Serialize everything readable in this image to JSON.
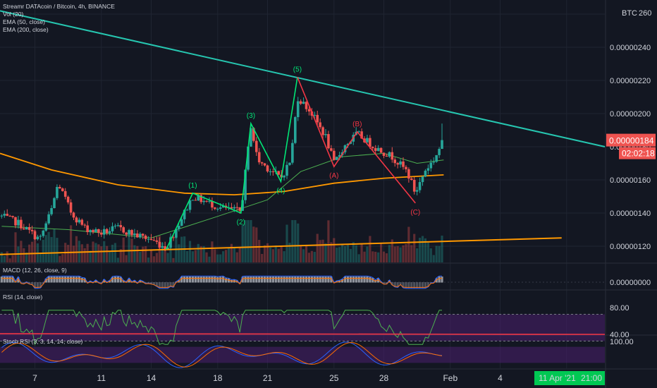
{
  "legend": {
    "title": "Streamr DATAcoin / Bitcoin, 4h, BINANCE",
    "vol": "Vol (20)",
    "ema50": "EMA (50, close)",
    "ema200": "EMA (200, close)"
  },
  "panes": {
    "macd": "MACD (12, 26, close, 9)",
    "rsi": "RSI (14, close)",
    "stoch": "Stoch RSI (3, 3, 14, 14, close)"
  },
  "currency": "BTC",
  "price_badge": {
    "price": "0.00000184",
    "countdown": "02:02:18",
    "color": "#ef5350"
  },
  "date_badge": {
    "date": "11 Apr '21",
    "time": "21:00",
    "color": "#00c853"
  },
  "colors": {
    "background": "#131722",
    "up": "#26a69a",
    "down": "#ef5350",
    "ema50": "#4caf50",
    "ema200": "#ff9800",
    "trendline_top": "#26c6b0",
    "trendline_bottom": "#ff9800",
    "impulse": "#00e676",
    "correction": "#f23645",
    "macd": "#2962ff",
    "signal": "#ff6d00",
    "rsi": "#7e57c2",
    "stoch_k": "#2962ff",
    "stoch_d": "#ff6d00",
    "band": "#4a1f6e"
  },
  "chart_data": {
    "type": "candlestick",
    "symbol": "Streamr DATAcoin / Bitcoin",
    "timeframe": "4h",
    "exchange": "BINANCE",
    "y_axis": {
      "currency": "BTC",
      "ticks": [
        "0.00000120",
        "0.00000140",
        "0.00000160",
        "0.00000180",
        "0.00000200",
        "0.00000220",
        "0.00000240",
        "0.00000260"
      ],
      "range": [
        1.08e-06,
        2.64e-06
      ]
    },
    "x_axis": {
      "ticks": [
        "7",
        "11",
        "14",
        "18",
        "21",
        "25",
        "28",
        "Feb",
        "4",
        "8"
      ],
      "tick_days": [
        7,
        11,
        14,
        18,
        21,
        25,
        28,
        32,
        35,
        39
      ],
      "range_days": [
        4.9,
        41.3
      ]
    },
    "key_points": [
      {
        "day": 5.0,
        "close": 1.38e-06
      },
      {
        "day": 6.0,
        "close": 1.34e-06
      },
      {
        "day": 7.3,
        "close": 1.24e-06
      },
      {
        "day": 8.0,
        "close": 1.42e-06
      },
      {
        "day": 8.4,
        "close": 1.58e-06
      },
      {
        "day": 9.2,
        "close": 1.4e-06
      },
      {
        "day": 10.0,
        "close": 1.31e-06
      },
      {
        "day": 11.0,
        "close": 1.28e-06
      },
      {
        "day": 12.0,
        "close": 1.31e-06
      },
      {
        "day": 13.0,
        "close": 1.27e-06
      },
      {
        "day": 14.0,
        "close": 1.24e-06
      },
      {
        "day": 14.9,
        "close": 1.19e-06
      },
      {
        "day": 16.5,
        "close": 1.5e-06
      },
      {
        "day": 18.2,
        "close": 1.43e-06
      },
      {
        "day": 19.4,
        "close": 1.41e-06
      },
      {
        "day": 20.0,
        "close": 1.93e-06
      },
      {
        "day": 20.4,
        "close": 1.72e-06
      },
      {
        "day": 21.8,
        "close": 1.61e-06
      },
      {
        "day": 22.4,
        "close": 1.72e-06
      },
      {
        "day": 22.8,
        "close": 2.1e-06
      },
      {
        "day": 23.6,
        "close": 2.01e-06
      },
      {
        "day": 24.5,
        "close": 1.86e-06
      },
      {
        "day": 25.0,
        "close": 1.7e-06
      },
      {
        "day": 25.6,
        "close": 1.8e-06
      },
      {
        "day": 26.4,
        "close": 1.88e-06
      },
      {
        "day": 27.4,
        "close": 1.8e-06
      },
      {
        "day": 28.5,
        "close": 1.74e-06
      },
      {
        "day": 29.4,
        "close": 1.65e-06
      },
      {
        "day": 29.9,
        "close": 1.52e-06
      },
      {
        "day": 30.5,
        "close": 1.66e-06
      },
      {
        "day": 31.0,
        "close": 1.72e-06
      },
      {
        "day": 31.6,
        "close": 1.84e-06
      }
    ],
    "ema50": [
      {
        "day": 5.0,
        "value": 1.32e-06
      },
      {
        "day": 9.0,
        "value": 1.3e-06
      },
      {
        "day": 14.0,
        "value": 1.25e-06
      },
      {
        "day": 18.0,
        "value": 1.38e-06
      },
      {
        "day": 21.0,
        "value": 1.48e-06
      },
      {
        "day": 23.0,
        "value": 1.65e-06
      },
      {
        "day": 25.5,
        "value": 1.74e-06
      },
      {
        "day": 28.0,
        "value": 1.76e-06
      },
      {
        "day": 30.0,
        "value": 1.7e-06
      },
      {
        "day": 31.6,
        "value": 1.72e-06
      }
    ],
    "ema200": [
      {
        "day": 4.9,
        "value": 1.76e-06
      },
      {
        "day": 8.0,
        "value": 1.66e-06
      },
      {
        "day": 12.0,
        "value": 1.57e-06
      },
      {
        "day": 16.0,
        "value": 1.52e-06
      },
      {
        "day": 19.0,
        "value": 1.51e-06
      },
      {
        "day": 22.0,
        "value": 1.53e-06
      },
      {
        "day": 25.0,
        "value": 1.58e-06
      },
      {
        "day": 28.0,
        "value": 1.61e-06
      },
      {
        "day": 31.6,
        "value": 1.63e-06
      }
    ],
    "trendlines": [
      {
        "name": "descending-resistance",
        "from": {
          "day": 4.9,
          "value": 2.62e-06
        },
        "to": {
          "day": 41.3,
          "value": 1.8e-06
        }
      },
      {
        "name": "ascending-support",
        "from": {
          "day": 4.9,
          "value": 1.15e-06
        },
        "to": {
          "day": 38.7,
          "value": 1.25e-06
        }
      }
    ],
    "waves": {
      "impulse": [
        {
          "label": "",
          "day": 14.9,
          "value": 1.18e-06
        },
        {
          "label": "(1)",
          "day": 16.5,
          "value": 1.52e-06
        },
        {
          "label": "(2)",
          "day": 19.4,
          "value": 1.4e-06
        },
        {
          "label": "(3)",
          "day": 20.0,
          "value": 1.94e-06
        },
        {
          "label": "(4)",
          "day": 21.8,
          "value": 1.59e-06
        },
        {
          "label": "(5)",
          "day": 22.8,
          "value": 2.22e-06
        }
      ],
      "correction": [
        {
          "label": "",
          "day": 22.8,
          "value": 2.22e-06
        },
        {
          "label": "(A)",
          "day": 25.0,
          "value": 1.68e-06
        },
        {
          "label": "(B)",
          "day": 26.4,
          "value": 1.89e-06
        },
        {
          "label": "(C)",
          "day": 29.9,
          "value": 1.46e-06
        }
      ]
    },
    "macd": {
      "zero_label": "0.00000000"
    },
    "rsi": {
      "ticks": [
        "80.00",
        "40.00"
      ],
      "band": [
        30,
        70
      ]
    },
    "stoch_rsi": {
      "ticks": [
        "100.00"
      ],
      "band": [
        20,
        80
      ]
    },
    "last_price": "0.00000184"
  }
}
